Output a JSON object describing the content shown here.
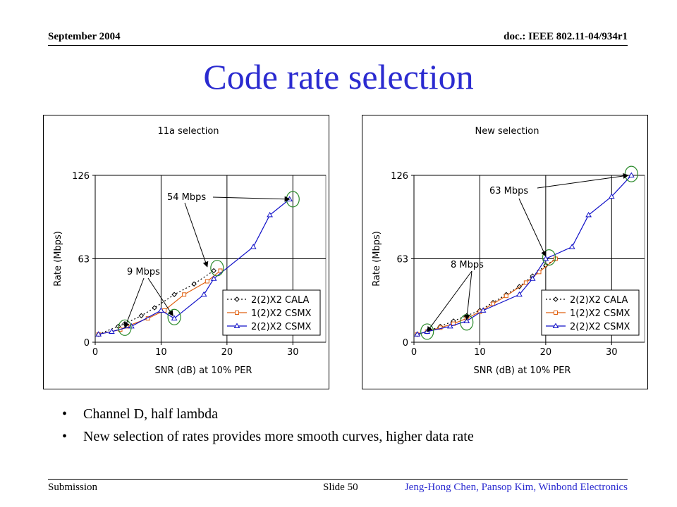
{
  "header": {
    "date": "September 2004",
    "doc": "doc.: IEEE 802.11-04/934r1"
  },
  "title": "Code rate selection",
  "colors": {
    "title": "#2b2bd0",
    "cala": "#000000",
    "csmx1": "#e06010",
    "csmx2": "#1010c8",
    "circle": "#2a8a2a"
  },
  "bullets": [
    "Channel D, half lambda",
    "New selection of rates provides more smooth curves, higher data rate"
  ],
  "footer": {
    "left": "Submission",
    "slide": "Slide 50",
    "authors": "Jeng-Hong Chen, Pansop Kim, Winbond Electronics"
  },
  "chart_data": [
    {
      "type": "line",
      "title": "11a selection",
      "xlabel": "SNR (dB) at 10% PER",
      "ylabel": "Rate (Mbps)",
      "xlim": [
        0,
        35
      ],
      "ylim": [
        0,
        126
      ],
      "xticks": [
        0,
        10,
        20,
        30
      ],
      "yticks": [
        0,
        63,
        126
      ],
      "grid": true,
      "legend": "bottom-right",
      "series": [
        {
          "name": "2(2)X2 CALA",
          "marker": "diamond",
          "x": [
            0.5,
            3.5,
            4.5,
            7,
            9,
            12,
            15,
            18
          ],
          "y": [
            6,
            12,
            14,
            20,
            26,
            36,
            44,
            54
          ]
        },
        {
          "name": "1(2)X2 CSMX",
          "marker": "square",
          "x": [
            0.5,
            3.8,
            4.8,
            8,
            10.5,
            13.5,
            17,
            19
          ],
          "y": [
            6,
            9.5,
            12,
            18,
            24,
            36,
            46,
            54
          ]
        },
        {
          "name": "2(2)X2 CSMX",
          "marker": "triangle",
          "x": [
            0.5,
            2.5,
            5.5,
            10,
            12,
            16.5,
            18,
            24,
            26.5,
            29.5
          ],
          "y": [
            6,
            8,
            12,
            24,
            18,
            36,
            48,
            72,
            96,
            108
          ]
        }
      ],
      "annotations": [
        {
          "text": "54 Mbps",
          "arrows_to": [
            [
              17,
              57
            ],
            [
              29.5,
              108
            ]
          ]
        },
        {
          "text": "9 Mbps",
          "arrows_to": [
            [
              4.5,
              11
            ],
            [
              11.8,
              20
            ]
          ]
        }
      ],
      "circles": [
        [
          4.5,
          11
        ],
        [
          12,
          19
        ],
        [
          18.5,
          56
        ],
        [
          30,
          108
        ]
      ]
    },
    {
      "type": "line",
      "title": "New selection",
      "xlabel": "SNR (dB) at 10% PER",
      "ylabel": "Rate (Mbps)",
      "xlim": [
        0,
        35
      ],
      "ylim": [
        0,
        126
      ],
      "xticks": [
        0,
        10,
        20,
        30
      ],
      "yticks": [
        0,
        63,
        126
      ],
      "grid": true,
      "legend": "bottom-right",
      "series": [
        {
          "name": "2(2)X2 CALA",
          "marker": "diamond",
          "x": [
            0.5,
            2,
            4,
            6,
            8,
            10,
            12,
            14,
            16,
            18,
            20,
            21.5
          ],
          "y": [
            6,
            8,
            12,
            16,
            20,
            24,
            30,
            36,
            42,
            50,
            58,
            63
          ]
        },
        {
          "name": "1(2)X2 CSMX",
          "marker": "square",
          "x": [
            0.5,
            2,
            4,
            6,
            8,
            10,
            12,
            14,
            17,
            19,
            21.5
          ],
          "y": [
            6,
            8,
            11,
            14,
            18,
            23,
            29,
            35,
            45,
            53,
            63
          ]
        },
        {
          "name": "2(2)X2 CSMX",
          "marker": "triangle",
          "x": [
            0.5,
            2,
            5.5,
            8,
            10.5,
            16,
            18,
            20,
            24,
            26.5,
            30,
            33
          ],
          "y": [
            6,
            8,
            12,
            16,
            24,
            36,
            48,
            63,
            72,
            96,
            110,
            126
          ]
        }
      ],
      "annotations": [
        {
          "text": "63 Mbps",
          "arrows_to": [
            [
              20,
              65
            ],
            [
              32.5,
              126
            ]
          ]
        },
        {
          "text": "8 Mbps",
          "arrows_to": [
            [
              2,
              8
            ],
            [
              8,
              17
            ]
          ]
        }
      ],
      "circles": [
        [
          2,
          8
        ],
        [
          8,
          15
        ],
        [
          20.5,
          64
        ],
        [
          33,
          127
        ]
      ]
    }
  ]
}
